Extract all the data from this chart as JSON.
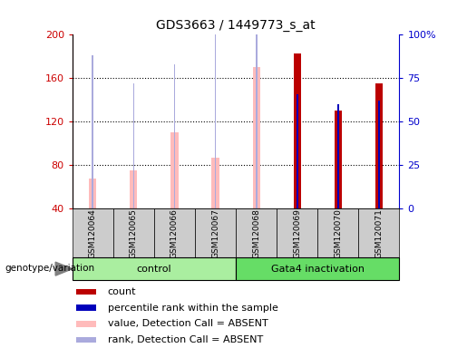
{
  "title": "GDS3663 / 1449773_s_at",
  "samples": [
    "GSM120064",
    "GSM120065",
    "GSM120066",
    "GSM120067",
    "GSM120068",
    "GSM120069",
    "GSM120070",
    "GSM120071"
  ],
  "count": [
    null,
    null,
    null,
    null,
    null,
    183,
    130,
    155
  ],
  "percentile_rank": [
    null,
    null,
    null,
    null,
    null,
    66,
    60,
    62
  ],
  "value_absent": [
    68,
    75,
    110,
    87,
    170,
    null,
    null,
    null
  ],
  "rank_absent": [
    88,
    72,
    83,
    121,
    130,
    null,
    null,
    null
  ],
  "ylim_left": [
    40,
    200
  ],
  "ylim_right": [
    0,
    100
  ],
  "yticks_left": [
    40,
    80,
    120,
    160,
    200
  ],
  "yticks_right": [
    0,
    25,
    50,
    75,
    100
  ],
  "ytick_labels_right": [
    "0",
    "25",
    "50",
    "75",
    "100%"
  ],
  "colors": {
    "count": "#bb0000",
    "percentile_rank": "#0000bb",
    "value_absent": "#ffbbbb",
    "rank_absent": "#aaaadd",
    "control_bg": "#aaeea0",
    "gata4_bg": "#66dd66",
    "sample_bg": "#cccccc",
    "left_axis_color": "#cc0000",
    "right_axis_color": "#0000cc"
  },
  "legend": [
    {
      "label": "count",
      "color": "#bb0000"
    },
    {
      "label": "percentile rank within the sample",
      "color": "#0000bb"
    },
    {
      "label": "value, Detection Call = ABSENT",
      "color": "#ffbbbb"
    },
    {
      "label": "rank, Detection Call = ABSENT",
      "color": "#aaaadd"
    }
  ],
  "wide_bar_width": 0.18,
  "narrow_bar_width": 0.04,
  "genotype_label": "genotype/variation"
}
